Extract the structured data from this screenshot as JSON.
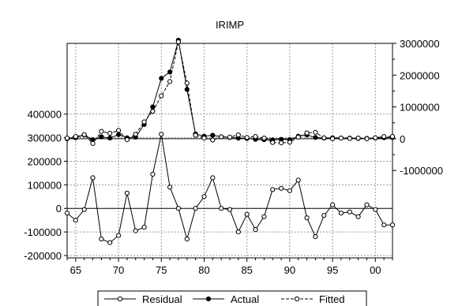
{
  "chart_data": {
    "type": "line",
    "title": "IRIMP",
    "x": [
      1964,
      1965,
      1966,
      1967,
      1968,
      1969,
      1970,
      1971,
      1972,
      1973,
      1974,
      1975,
      1976,
      1977,
      1978,
      1979,
      1980,
      1981,
      1982,
      1983,
      1984,
      1985,
      1986,
      1987,
      1988,
      1989,
      1990,
      1991,
      1992,
      1993,
      1994,
      1995,
      1996,
      1997,
      1998,
      1999,
      2000,
      2001,
      2002
    ],
    "x_ticks": [
      1965,
      1970,
      1975,
      1980,
      1985,
      1990,
      1995,
      2000
    ],
    "x_tick_labels": [
      "65",
      "70",
      "75",
      "80",
      "85",
      "90",
      "95",
      "00"
    ],
    "xlim": [
      1964,
      2002
    ],
    "left_axis": {
      "ticks": [
        -200000,
        -100000,
        0,
        100000,
        200000,
        300000,
        400000
      ],
      "tick_labels": [
        "-200000",
        "-100000",
        "0",
        "100000",
        "200000",
        "300000",
        "400000"
      ],
      "ylim": [
        -210000,
        700000
      ]
    },
    "right_axis": {
      "ticks": [
        -1000000,
        0,
        1000000,
        2000000,
        3000000
      ],
      "tick_labels": [
        "-1000000",
        "0",
        "1000000",
        "2000000",
        "3000000"
      ],
      "ylim": [
        -3750000,
        3000000
      ]
    },
    "grid": true,
    "legend_position": "bottom",
    "series": [
      {
        "name": "Residual",
        "axis": "left",
        "marker": "open-circle",
        "line": "solid",
        "values": [
          -20000,
          -50000,
          -5000,
          130000,
          -130000,
          -145000,
          -115000,
          65000,
          -95000,
          -80000,
          145000,
          315000,
          90000,
          0,
          -130000,
          0,
          50000,
          130000,
          0,
          -5000,
          -100000,
          -25000,
          -90000,
          -35000,
          80000,
          85000,
          75000,
          120000,
          -40000,
          -120000,
          -30000,
          15000,
          -20000,
          -15000,
          -35000,
          15000,
          -5000,
          -70000,
          -70000
        ]
      },
      {
        "name": "Actual",
        "axis": "right",
        "marker": "filled-circle",
        "line": "solid",
        "values": [
          0,
          30000,
          120000,
          -30000,
          60000,
          20000,
          130000,
          30000,
          50000,
          450000,
          1000000,
          1900000,
          2100000,
          3100000,
          1550000,
          150000,
          80000,
          110000,
          60000,
          40000,
          20000,
          10000,
          -20000,
          -30000,
          -40000,
          -20000,
          -30000,
          80000,
          120000,
          40000,
          20000,
          30000,
          20000,
          20000,
          10000,
          10000,
          20000,
          30000,
          40000
        ]
      },
      {
        "name": "Fitted",
        "axis": "right",
        "marker": "open-circle",
        "line": "dashed",
        "values": [
          20000,
          70000,
          130000,
          -150000,
          230000,
          170000,
          260000,
          -30000,
          140000,
          530000,
          860000,
          1350000,
          1800000,
          3050000,
          1750000,
          110000,
          20000,
          -40000,
          60000,
          50000,
          120000,
          40000,
          70000,
          20000,
          -120000,
          -130000,
          -110000,
          50000,
          180000,
          200000,
          30000,
          0,
          20000,
          10000,
          20000,
          0,
          30000,
          70000,
          70000
        ]
      }
    ]
  }
}
